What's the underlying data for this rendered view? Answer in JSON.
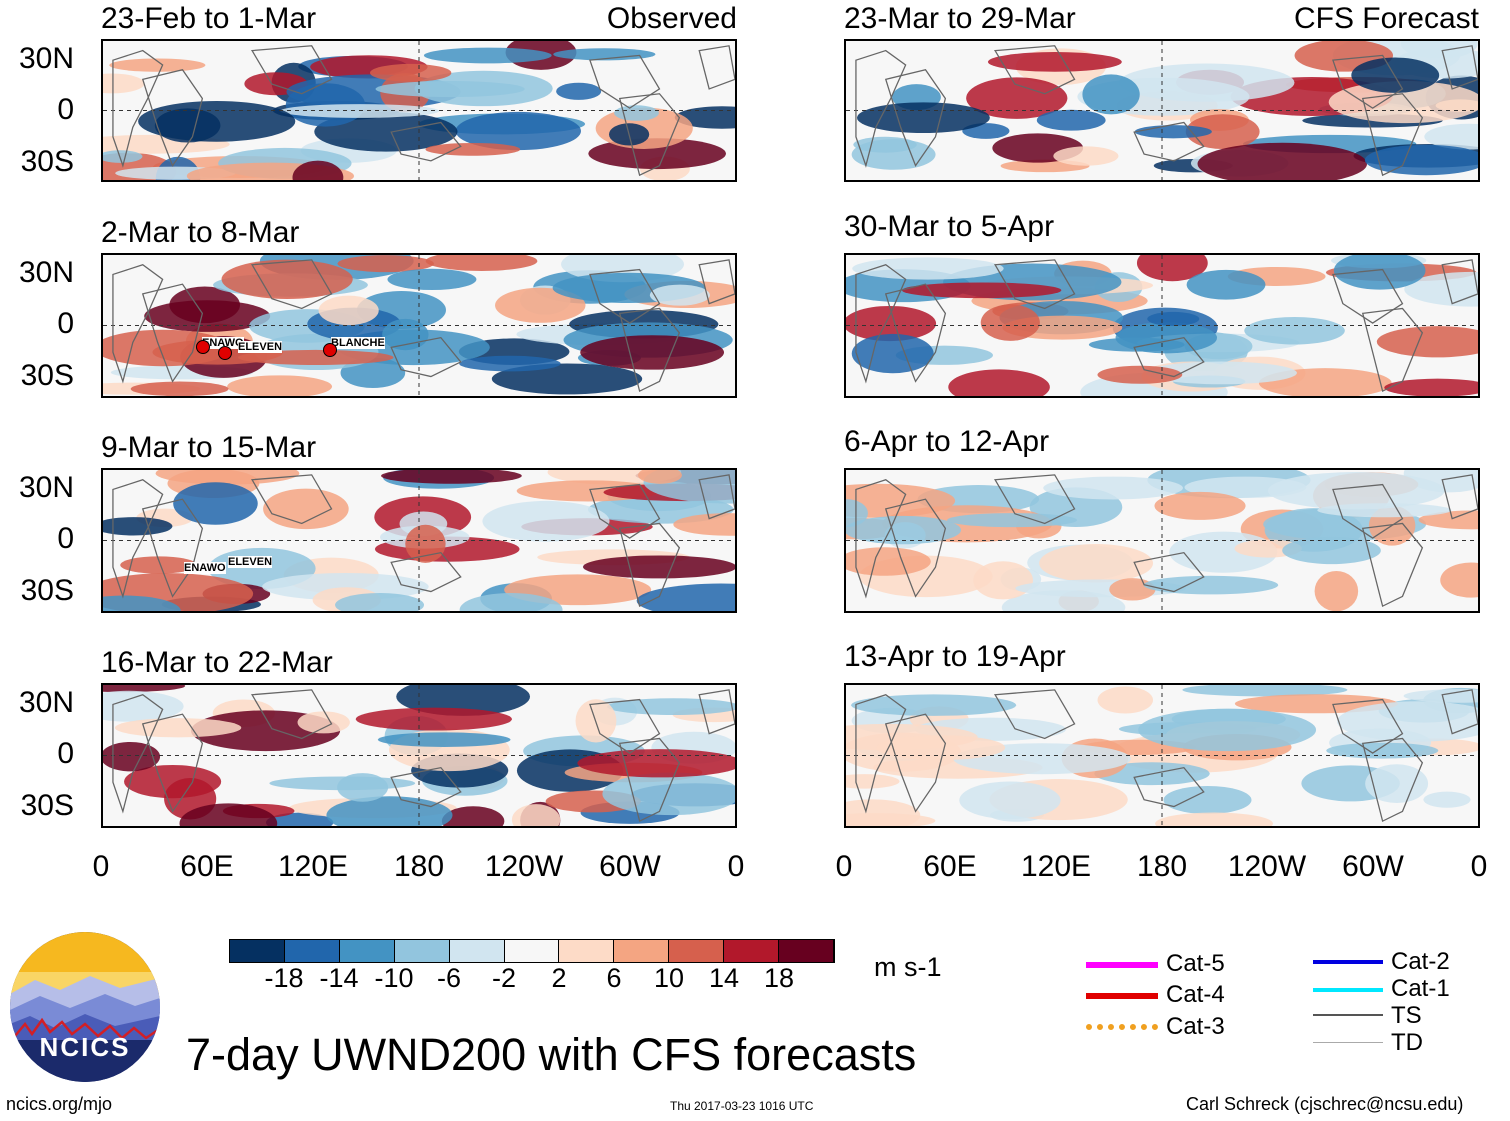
{
  "chart_data": {
    "type": "heatmap",
    "title": "7-day UWND200 with CFS forecasts",
    "units": "m s-1",
    "lat_ticks": [
      "30N",
      "0",
      "30S"
    ],
    "lon_ticks": [
      "0",
      "60E",
      "120E",
      "180",
      "120W",
      "60W",
      "0"
    ],
    "colorbar": {
      "ticks": [
        "-18",
        "-14",
        "-10",
        "-6",
        "-2",
        "2",
        "6",
        "10",
        "14",
        "18"
      ],
      "colors": [
        "#053061",
        "#2166ac",
        "#4393c3",
        "#92c5de",
        "#d1e5f0",
        "#f7f7f7",
        "#fddbc7",
        "#f4a582",
        "#d6604d",
        "#b2182b",
        "#67001f"
      ]
    },
    "panels": [
      {
        "label": "23-Feb to 1-Mar",
        "tag": "Observed",
        "column": "observed",
        "storms": []
      },
      {
        "label": "2-Mar to 8-Mar",
        "tag": "",
        "column": "observed",
        "storms": [
          "ENAWO",
          "ELEVEN",
          "BLANCHE"
        ]
      },
      {
        "label": "9-Mar to 15-Mar",
        "tag": "",
        "column": "observed",
        "storms": [
          "ENAWO",
          "ELEVEN"
        ]
      },
      {
        "label": "16-Mar to 22-Mar",
        "tag": "",
        "column": "observed",
        "storms": []
      },
      {
        "label": "23-Mar to 29-Mar",
        "tag": "CFS Forecast",
        "column": "forecast",
        "storms": []
      },
      {
        "label": "30-Mar to 5-Apr",
        "tag": "",
        "column": "forecast",
        "storms": []
      },
      {
        "label": "6-Apr to 12-Apr",
        "tag": "",
        "column": "forecast",
        "storms": []
      },
      {
        "label": "13-Apr to 19-Apr",
        "tag": "",
        "column": "forecast",
        "storms": []
      }
    ]
  },
  "legend": {
    "items": [
      {
        "label": "Cat-5",
        "color": "#ff00ff"
      },
      {
        "label": "Cat-4",
        "color": "#e00000"
      },
      {
        "label": "Cat-3",
        "color": "#f0a020"
      },
      {
        "label": "Cat-2",
        "color": "#0000e0"
      },
      {
        "label": "Cat-1",
        "color": "#00e8ff"
      },
      {
        "label": "TS",
        "color": "#555555"
      },
      {
        "label": "TD",
        "color": "#aaaaaa"
      }
    ]
  },
  "logo": {
    "text": "NCICS"
  },
  "footer": {
    "site": "ncics.org/mjo",
    "timestamp": "Thu 2017-03-23 1016 UTC",
    "credit": "Carl Schreck (cjschrec@ncsu.edu)"
  }
}
